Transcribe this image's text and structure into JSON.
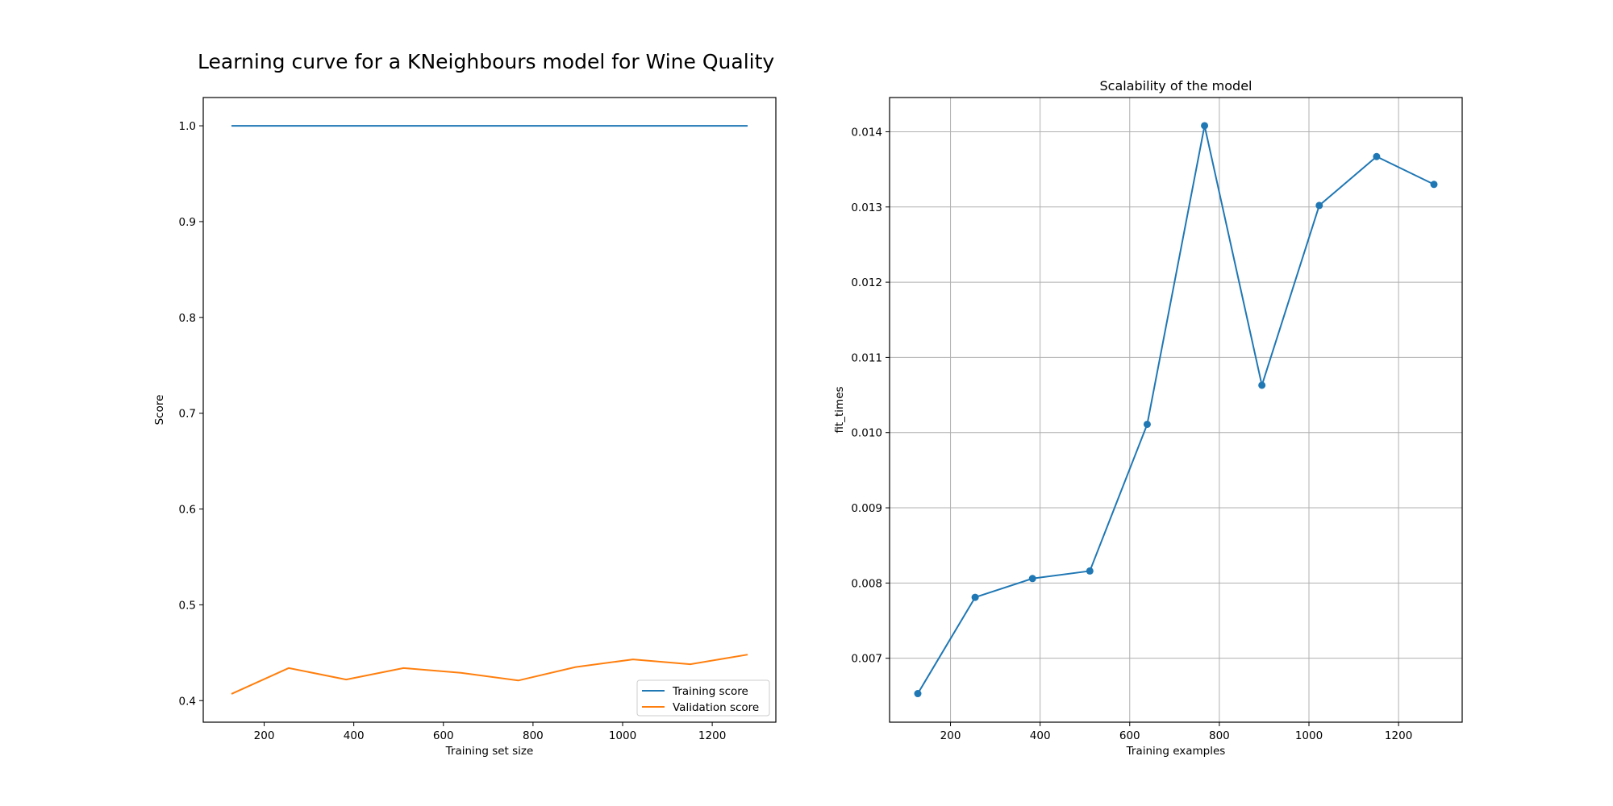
{
  "figure": {
    "suptitle": "Learning curve for a KNeighbours model for Wine Quality"
  },
  "chart_data": [
    {
      "type": "line",
      "title": "",
      "xlabel": "Training set size",
      "ylabel": "Score",
      "xlim": [
        64,
        1342
      ],
      "ylim": [
        0.3775,
        1.0295
      ],
      "x_ticks": [
        200,
        400,
        600,
        800,
        1000,
        1200
      ],
      "y_ticks": [
        0.4,
        0.5,
        0.6,
        0.7,
        0.8,
        0.9,
        1.0
      ],
      "grid": false,
      "legend_position": "lower-right",
      "x": [
        127,
        255,
        383,
        511,
        639,
        767,
        895,
        1023,
        1151,
        1279
      ],
      "series": [
        {
          "name": "Training score",
          "color": "#1f77b4",
          "values": [
            1.0,
            1.0,
            1.0,
            1.0,
            1.0,
            1.0,
            1.0,
            1.0,
            1.0,
            1.0
          ]
        },
        {
          "name": "Validation score",
          "color": "#ff7f0e",
          "values": [
            0.407,
            0.434,
            0.422,
            0.434,
            0.429,
            0.421,
            0.435,
            0.443,
            0.438,
            0.448
          ]
        }
      ]
    },
    {
      "type": "line",
      "title": "Scalability of the model",
      "xlabel": "Training examples",
      "ylabel": "fit_times",
      "xlim": [
        64,
        1342
      ],
      "ylim": [
        0.00615,
        0.014455
      ],
      "x_ticks": [
        200,
        400,
        600,
        800,
        1000,
        1200
      ],
      "y_ticks": [
        0.007,
        0.008,
        0.009,
        0.01,
        0.011,
        0.012,
        0.013,
        0.014
      ],
      "y_tick_labels": [
        "0.007",
        "0.008",
        "0.009",
        "0.010",
        "0.011",
        "0.012",
        "0.013",
        "0.014"
      ],
      "grid": true,
      "markers": true,
      "x": [
        127,
        255,
        383,
        511,
        639,
        767,
        895,
        1023,
        1151,
        1279
      ],
      "series": [
        {
          "color": "#1f77b4",
          "values": [
            0.00653,
            0.00781,
            0.00806,
            0.00816,
            0.01011,
            0.01408,
            0.01063,
            0.01302,
            0.01367,
            0.0133
          ]
        }
      ]
    }
  ]
}
